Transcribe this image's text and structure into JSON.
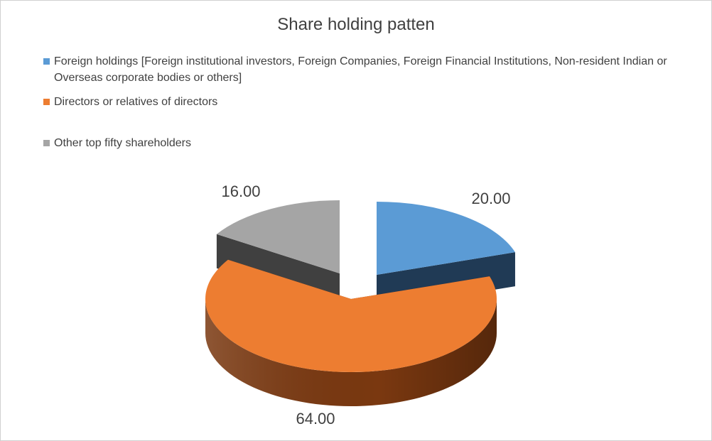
{
  "chart_data": {
    "type": "pie",
    "variant": "3d-exploded",
    "title": "Share holding patten",
    "legend_position": "top",
    "slices": [
      {
        "name": "Foreign holdings [Foreign institutional investors, Foreign Companies, Foreign Financial Institutions, Non-resident Indian or Overseas corporate bodies or others]",
        "value": 20,
        "label": "20.00",
        "color": "#5b9bd5",
        "side_color": "#203a55"
      },
      {
        "name": "Directors or relatives of directors",
        "value": 64,
        "label": "64.00",
        "color": "#ed7d31",
        "side_color": "#7a3810"
      },
      {
        "name": "Other top fifty shareholders",
        "value": 16,
        "label": "16.00",
        "color": "#a5a5a5",
        "side_color": "#404040"
      }
    ]
  }
}
